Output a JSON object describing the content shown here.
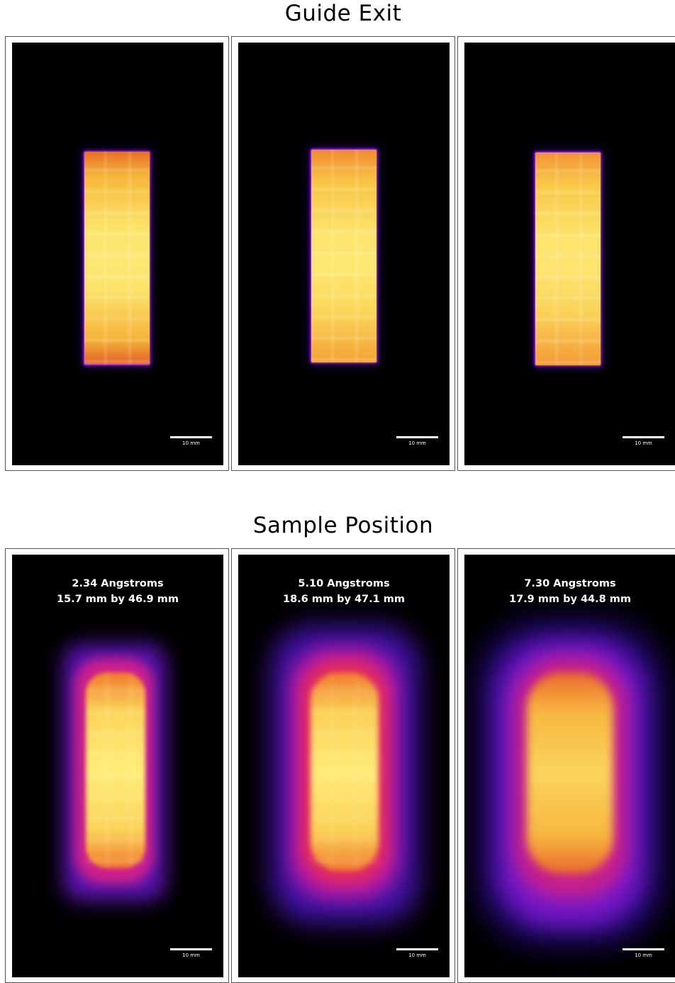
{
  "sections": [
    {
      "title": "Guide Exit",
      "panels": [
        {
          "scale_label": "10 mm"
        },
        {
          "scale_label": "10 mm"
        },
        {
          "scale_label": "10 mm"
        }
      ]
    },
    {
      "title": "Sample Position",
      "panels": [
        {
          "wavelength": "2.34 Angstroms",
          "size": "15.7 mm by 46.9 mm",
          "scale_label": "10 mm"
        },
        {
          "wavelength": "5.10 Angstroms",
          "size": "18.6 mm by 47.1 mm",
          "scale_label": "10 mm"
        },
        {
          "wavelength": "7.30 Angstroms",
          "size": "17.9 mm by 44.8 mm",
          "scale_label": "10 mm"
        }
      ]
    }
  ],
  "colormap": [
    "#000000",
    "#3a0a8c",
    "#8a1bd0",
    "#d4145a",
    "#f0641e",
    "#f5a623",
    "#fff06a"
  ]
}
